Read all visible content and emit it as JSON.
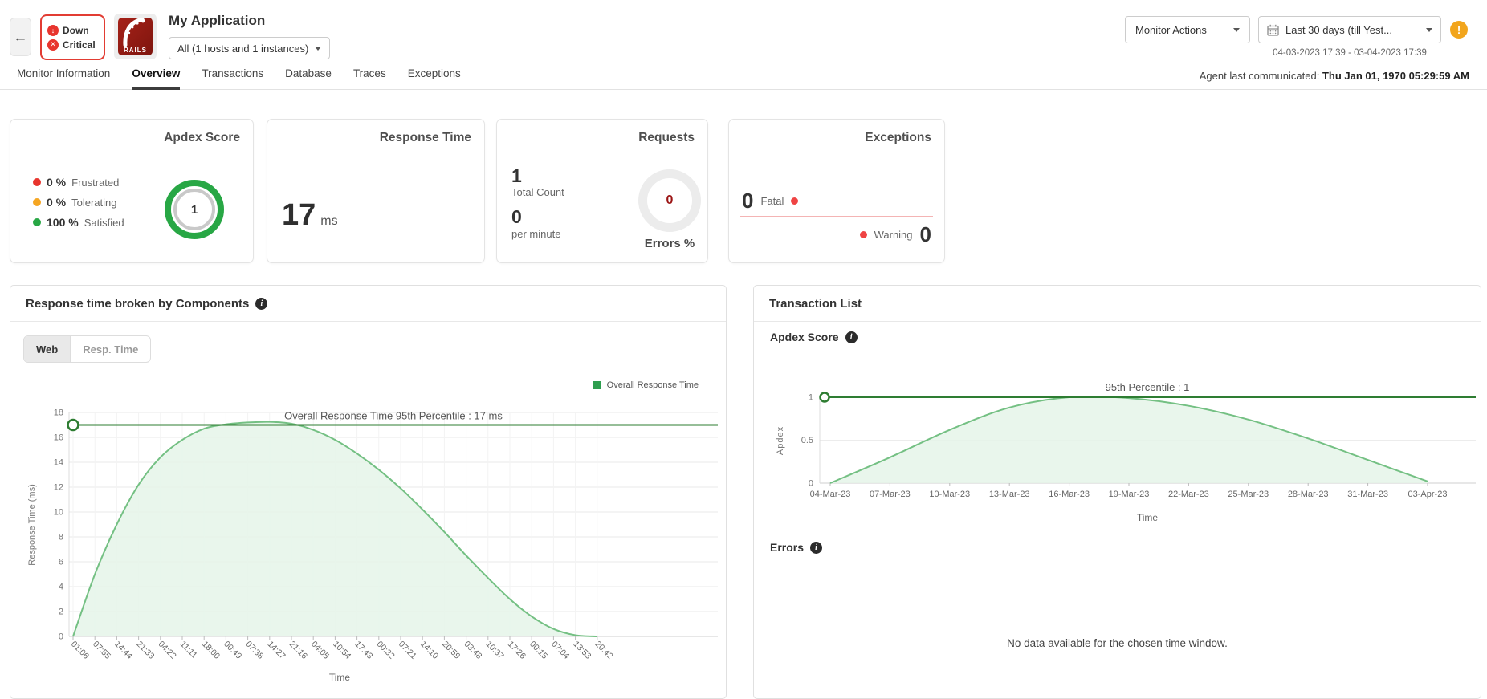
{
  "icons": {
    "back": "←",
    "info": "i",
    "warning": "!",
    "down_arrow": "↓",
    "critical_x": "✕"
  },
  "header": {
    "status": {
      "down": "Down",
      "critical": "Critical"
    },
    "logo_text": "RAILS",
    "app_title": "My Application",
    "scope_dropdown": "All (1 hosts and 1 instances)",
    "monitor_actions": "Monitor Actions",
    "date_range_dropdown": "Last 30 days (till Yest...",
    "date_range_text": "04-03-2023 17:39 - 03-04-2023 17:39"
  },
  "tabs": {
    "items": [
      "Monitor Information",
      "Overview",
      "Transactions",
      "Database",
      "Traces",
      "Exceptions"
    ],
    "active": "Overview",
    "agent_label": "Agent last communicated:",
    "agent_value": "Thu Jan 01, 1970 05:29:59 AM"
  },
  "cards": {
    "apdex": {
      "title": "Apdex Score",
      "items": [
        {
          "value": "0 %",
          "label": "Frustrated",
          "color": "#e8352e"
        },
        {
          "value": "0 %",
          "label": "Tolerating",
          "color": "#f5a623"
        },
        {
          "value": "100 %",
          "label": "Satisfied",
          "color": "#28a745"
        }
      ],
      "score": "1"
    },
    "response_time": {
      "title": "Response Time",
      "value": "17",
      "unit": "ms"
    },
    "requests": {
      "title": "Requests",
      "total_value": "1",
      "total_label": "Total Count",
      "rate_value": "0",
      "rate_label": "per minute",
      "errors_value": "0",
      "errors_label": "Errors %"
    },
    "exceptions": {
      "title": "Exceptions",
      "fatal_value": "0",
      "fatal_label": "Fatal",
      "warning_value": "0",
      "warning_label": "Warning"
    }
  },
  "left_panel": {
    "title": "Response time broken by Components",
    "toggles": [
      "Web",
      "Resp. Time"
    ],
    "active_toggle": "Web",
    "legend": "Overall Response Time"
  },
  "right_panel": {
    "title": "Transaction List",
    "apdex_section_title": "Apdex Score",
    "errors_section_title": "Errors",
    "no_data_message": "No data available for the chosen time window."
  },
  "chart_data": [
    {
      "type": "area",
      "title": "Response time broken by Components",
      "categories": [
        "01:06",
        "07:55",
        "14:44",
        "21:33",
        "04:22",
        "11:11",
        "18:00",
        "00:49",
        "07:38",
        "14:27",
        "21:16",
        "04:05",
        "10:54",
        "17:43",
        "00:32",
        "07:21",
        "14:10",
        "20:59",
        "03:48",
        "10:37",
        "17:26",
        "00:15",
        "07:04",
        "13:53",
        "20:42"
      ],
      "series": [
        {
          "name": "Overall Response Time",
          "values": [
            0,
            5,
            9,
            12.2,
            14.4,
            15.8,
            16.7,
            17.05,
            17.2,
            17.25,
            17.1,
            16.6,
            15.8,
            14.7,
            13.4,
            11.9,
            10.2,
            8.4,
            6.5,
            4.7,
            3,
            1.6,
            0.6,
            0.1,
            0
          ]
        }
      ],
      "xlabel": "Time",
      "ylabel": "Response Time (ms)",
      "ylim": [
        0,
        18
      ],
      "yticks": [
        0,
        2,
        4,
        6,
        8,
        10,
        12,
        14,
        16,
        18
      ],
      "grid": true,
      "legend_position": "top-right",
      "percentile": {
        "value": 17,
        "label": "Overall Response Time 95th Percentile : 17 ms"
      },
      "line_color": "#74c083",
      "fill_color": "#e5f4e9",
      "percentile_color": "#2e7d32"
    },
    {
      "type": "area",
      "title": "Apdex Score",
      "categories": [
        "04-Mar-23",
        "07-Mar-23",
        "10-Mar-23",
        "13-Mar-23",
        "16-Mar-23",
        "19-Mar-23",
        "22-Mar-23",
        "25-Mar-23",
        "28-Mar-23",
        "31-Mar-23",
        "03-Apr-23"
      ],
      "series": [
        {
          "name": "Apdex",
          "values": [
            0,
            0.3,
            0.62,
            0.88,
            1,
            0.99,
            0.9,
            0.74,
            0.52,
            0.27,
            0.02
          ]
        }
      ],
      "xlabel": "Time",
      "ylabel": "Apdex",
      "ylim": [
        0,
        1
      ],
      "yticks": [
        0,
        0.5,
        1
      ],
      "grid": true,
      "percentile": {
        "value": 1,
        "label": "95th Percentile : 1"
      },
      "line_color": "#74c083",
      "fill_color": "#e5f4e9",
      "percentile_color": "#2e7d32"
    }
  ]
}
